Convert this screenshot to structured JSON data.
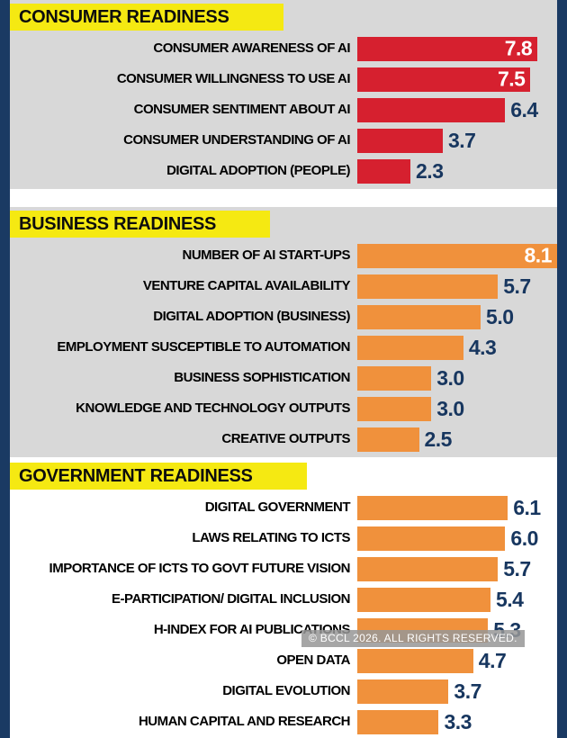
{
  "watermark": "© BCCL 2026. ALL RIGHTS RESERVED.",
  "colors": {
    "consumer_bar": "#d6202f",
    "business_bar": "#f0913c",
    "government_bar": "#f0913c",
    "header_bg": "#f5e912",
    "value_text": "#17365f",
    "value_text_inside": "#ffffff",
    "section_bg_gray": "#d8d8d8",
    "side_strip": "#1a3a63"
  },
  "chart_data": [
    {
      "type": "bar",
      "orientation": "horizontal",
      "title": "CONSUMER READINESS",
      "bar_color": "#d6202f",
      "xlim": [
        0,
        8.65
      ],
      "grid": false,
      "legend": "none",
      "categories": [
        "CONSUMER AWARENESS OF AI",
        "CONSUMER WILLINGNESS TO USE AI",
        "CONSUMER SENTIMENT ABOUT AI",
        "CONSUMER UNDERSTANDING OF AI",
        "DIGITAL ADOPTION (PEOPLE)"
      ],
      "values": [
        7.8,
        7.5,
        6.4,
        3.7,
        2.3
      ]
    },
    {
      "type": "bar",
      "orientation": "horizontal",
      "title": "BUSINESS READINESS",
      "bar_color": "#f0913c",
      "xlim": [
        0,
        8.1
      ],
      "grid": false,
      "legend": "none",
      "categories": [
        "NUMBER OF AI START-UPS",
        "VENTURE CAPITAL AVAILABILITY",
        "DIGITAL ADOPTION (BUSINESS)",
        "EMPLOYMENT SUSCEPTIBLE TO AUTOMATION",
        "BUSINESS SOPHISTICATION",
        "KNOWLEDGE AND TECHNOLOGY OUTPUTS",
        "CREATIVE OUTPUTS"
      ],
      "values": [
        8.1,
        5.7,
        5.0,
        4.3,
        3.0,
        3.0,
        2.5
      ]
    },
    {
      "type": "bar",
      "orientation": "horizontal",
      "title": "GOVERNMENT READINESS",
      "bar_color": "#f0913c",
      "xlim": [
        0,
        8.1
      ],
      "grid": false,
      "legend": "none",
      "categories": [
        "DIGITAL GOVERNMENT",
        "LAWS RELATING TO ICTS",
        "IMPORTANCE OF ICTS TO GOVT FUTURE VISION",
        "E-PARTICIPATION/ DIGITAL INCLUSION",
        "H-INDEX FOR AI PUBLICATIONS",
        "OPEN DATA",
        "DIGITAL EVOLUTION",
        "HUMAN CAPITAL AND RESEARCH"
      ],
      "values": [
        6.1,
        6.0,
        5.7,
        5.4,
        5.3,
        4.7,
        3.7,
        3.3
      ]
    }
  ]
}
